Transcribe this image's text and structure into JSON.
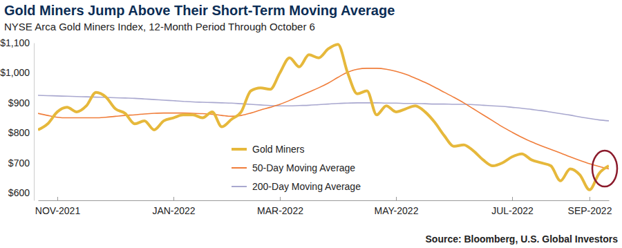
{
  "chart_data": {
    "type": "line",
    "title": "Gold Miners Jump Above Their Short-Term Moving Average",
    "subtitle": "NYSE Arca Gold Miners Index, 12-Month Period Through October 6",
    "source": "Source: Bloomberg, U.S. Global Investors",
    "categories": [
      null,
      null,
      "NOV-2021",
      null,
      null,
      null,
      null,
      null,
      null,
      null,
      null,
      null,
      null,
      null,
      "JAN-2022",
      null,
      null,
      null,
      null,
      null,
      null,
      null,
      null,
      null,
      null,
      "MAR-2022",
      null,
      null,
      null,
      null,
      null,
      null,
      null,
      null,
      null,
      null,
      null,
      "MAY-2022",
      null,
      null,
      null,
      null,
      null,
      null,
      null,
      null,
      null,
      null,
      null,
      "JUL-2022",
      null,
      null,
      null,
      null,
      null,
      null,
      null,
      "SEP-2022",
      null,
      null
    ],
    "series": [
      {
        "name": "Gold Miners",
        "color": "#e6b83b",
        "values": [
          810,
          830,
          870,
          885,
          870,
          890,
          935,
          920,
          880,
          865,
          830,
          840,
          810,
          840,
          850,
          860,
          860,
          850,
          870,
          820,
          845,
          870,
          940,
          950,
          945,
          1000,
          1050,
          1020,
          1060,
          1050,
          1080,
          1095,
          1000,
          930,
          940,
          860,
          890,
          870,
          880,
          890,
          870,
          835,
          790,
          755,
          760,
          740,
          710,
          690,
          700,
          720,
          730,
          710,
          700,
          690,
          640,
          680,
          660,
          610,
          665,
          690
        ]
      },
      {
        "name": "50-Day Moving Average",
        "color": "#f07d3a",
        "values": [
          865,
          858,
          852,
          850,
          850,
          850,
          850,
          852,
          855,
          858,
          860,
          863,
          865,
          866,
          866,
          866,
          865,
          864,
          862,
          858,
          855,
          858,
          866,
          876,
          885,
          895,
          908,
          922,
          936,
          950,
          966,
          985,
          1002,
          1012,
          1015,
          1015,
          1012,
          1005,
          995,
          982,
          968,
          952,
          935,
          918,
          900,
          880,
          860,
          840,
          820,
          802,
          785,
          770,
          757,
          745,
          733,
          720,
          708,
          697,
          688,
          680
        ]
      },
      {
        "name": "200-Day Moving Average",
        "color": "#a9a8cf",
        "values": [
          925,
          924,
          923,
          922,
          921,
          920,
          919,
          918,
          917,
          916,
          915,
          913,
          911,
          909,
          907,
          905,
          903,
          902,
          901,
          900,
          899,
          897,
          895,
          893,
          891,
          890,
          890,
          891,
          892,
          894,
          896,
          898,
          899,
          900,
          900,
          900,
          899,
          899,
          898,
          898,
          897,
          896,
          896,
          895,
          895,
          894,
          892,
          890,
          888,
          885,
          882,
          878,
          874,
          869,
          864,
          859,
          853,
          848,
          843,
          840
        ]
      }
    ],
    "ylim": [
      575,
      1100
    ],
    "yticks": [
      {
        "value": 600,
        "label": "$600"
      },
      {
        "value": 700,
        "label": "$700"
      },
      {
        "value": 800,
        "label": "$800"
      },
      {
        "value": 900,
        "label": "$900"
      },
      {
        "value": 1000,
        "label": "$1,000"
      },
      {
        "value": 1100,
        "label": "$1,100"
      }
    ],
    "grid": false,
    "legend": "bottom-left"
  }
}
